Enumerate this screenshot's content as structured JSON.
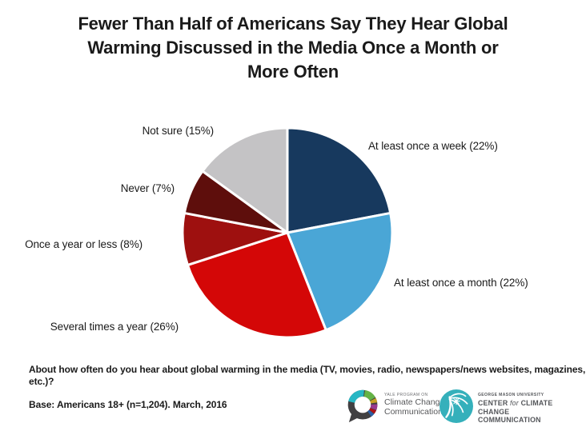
{
  "title_lines": [
    "Fewer Than Half of Americans Say They Hear Global",
    "Warming Discussed in the Media Once a Month or",
    "More Often"
  ],
  "chart_data": {
    "type": "pie",
    "title": "Fewer Than Half of Americans Say They Hear Global Warming Discussed in the Media Once a Month or More Often",
    "start_angle_deg": 0,
    "direction": "clockwise",
    "unit": "%",
    "slice_gap_color": "#ffffff",
    "slices": [
      {
        "label": "At least once a week",
        "value": 22,
        "display": "At least once a week (22%)",
        "color": "#17395e"
      },
      {
        "label": "At least once a month",
        "value": 22,
        "display": "At least once a month (22%)",
        "color": "#4aa6d6"
      },
      {
        "label": "Several times a year",
        "value": 26,
        "display": "Several times a year (26%)",
        "color": "#d40707"
      },
      {
        "label": "Once a year or less",
        "value": 8,
        "display": "Once a year or less (8%)",
        "color": "#9e100f"
      },
      {
        "label": "Never",
        "value": 7,
        "display": "Never (7%)",
        "color": "#5e0e0c"
      },
      {
        "label": "Not sure",
        "value": 15,
        "display": "Not sure (15%)",
        "color": "#c4c3c5"
      }
    ]
  },
  "footer": {
    "question": "About how often do you hear about global warming in the media (TV, movies, radio, newspapers/news websites, magazines, etc.)?",
    "base": "Base: Americans 18+ (n=1,204). March, 2016"
  },
  "logos": {
    "yale": {
      "line1": "YALE PROGRAM ON",
      "line2": "Climate Change",
      "line3": "Communication"
    },
    "gmu": {
      "line1": "GEORGE MASON UNIVERSITY",
      "line2_a": "CENTER",
      "line2_b": "for",
      "line2_c": "CLIMATE CHANGE",
      "line3": "COMMUNICATION"
    }
  },
  "colors": {
    "background": "#ffffff",
    "title_text": "#1a1a1a",
    "label_text": "#1a1a1a",
    "yale_charcoal": "#414042",
    "gmu_teal": "#35b0bb"
  }
}
